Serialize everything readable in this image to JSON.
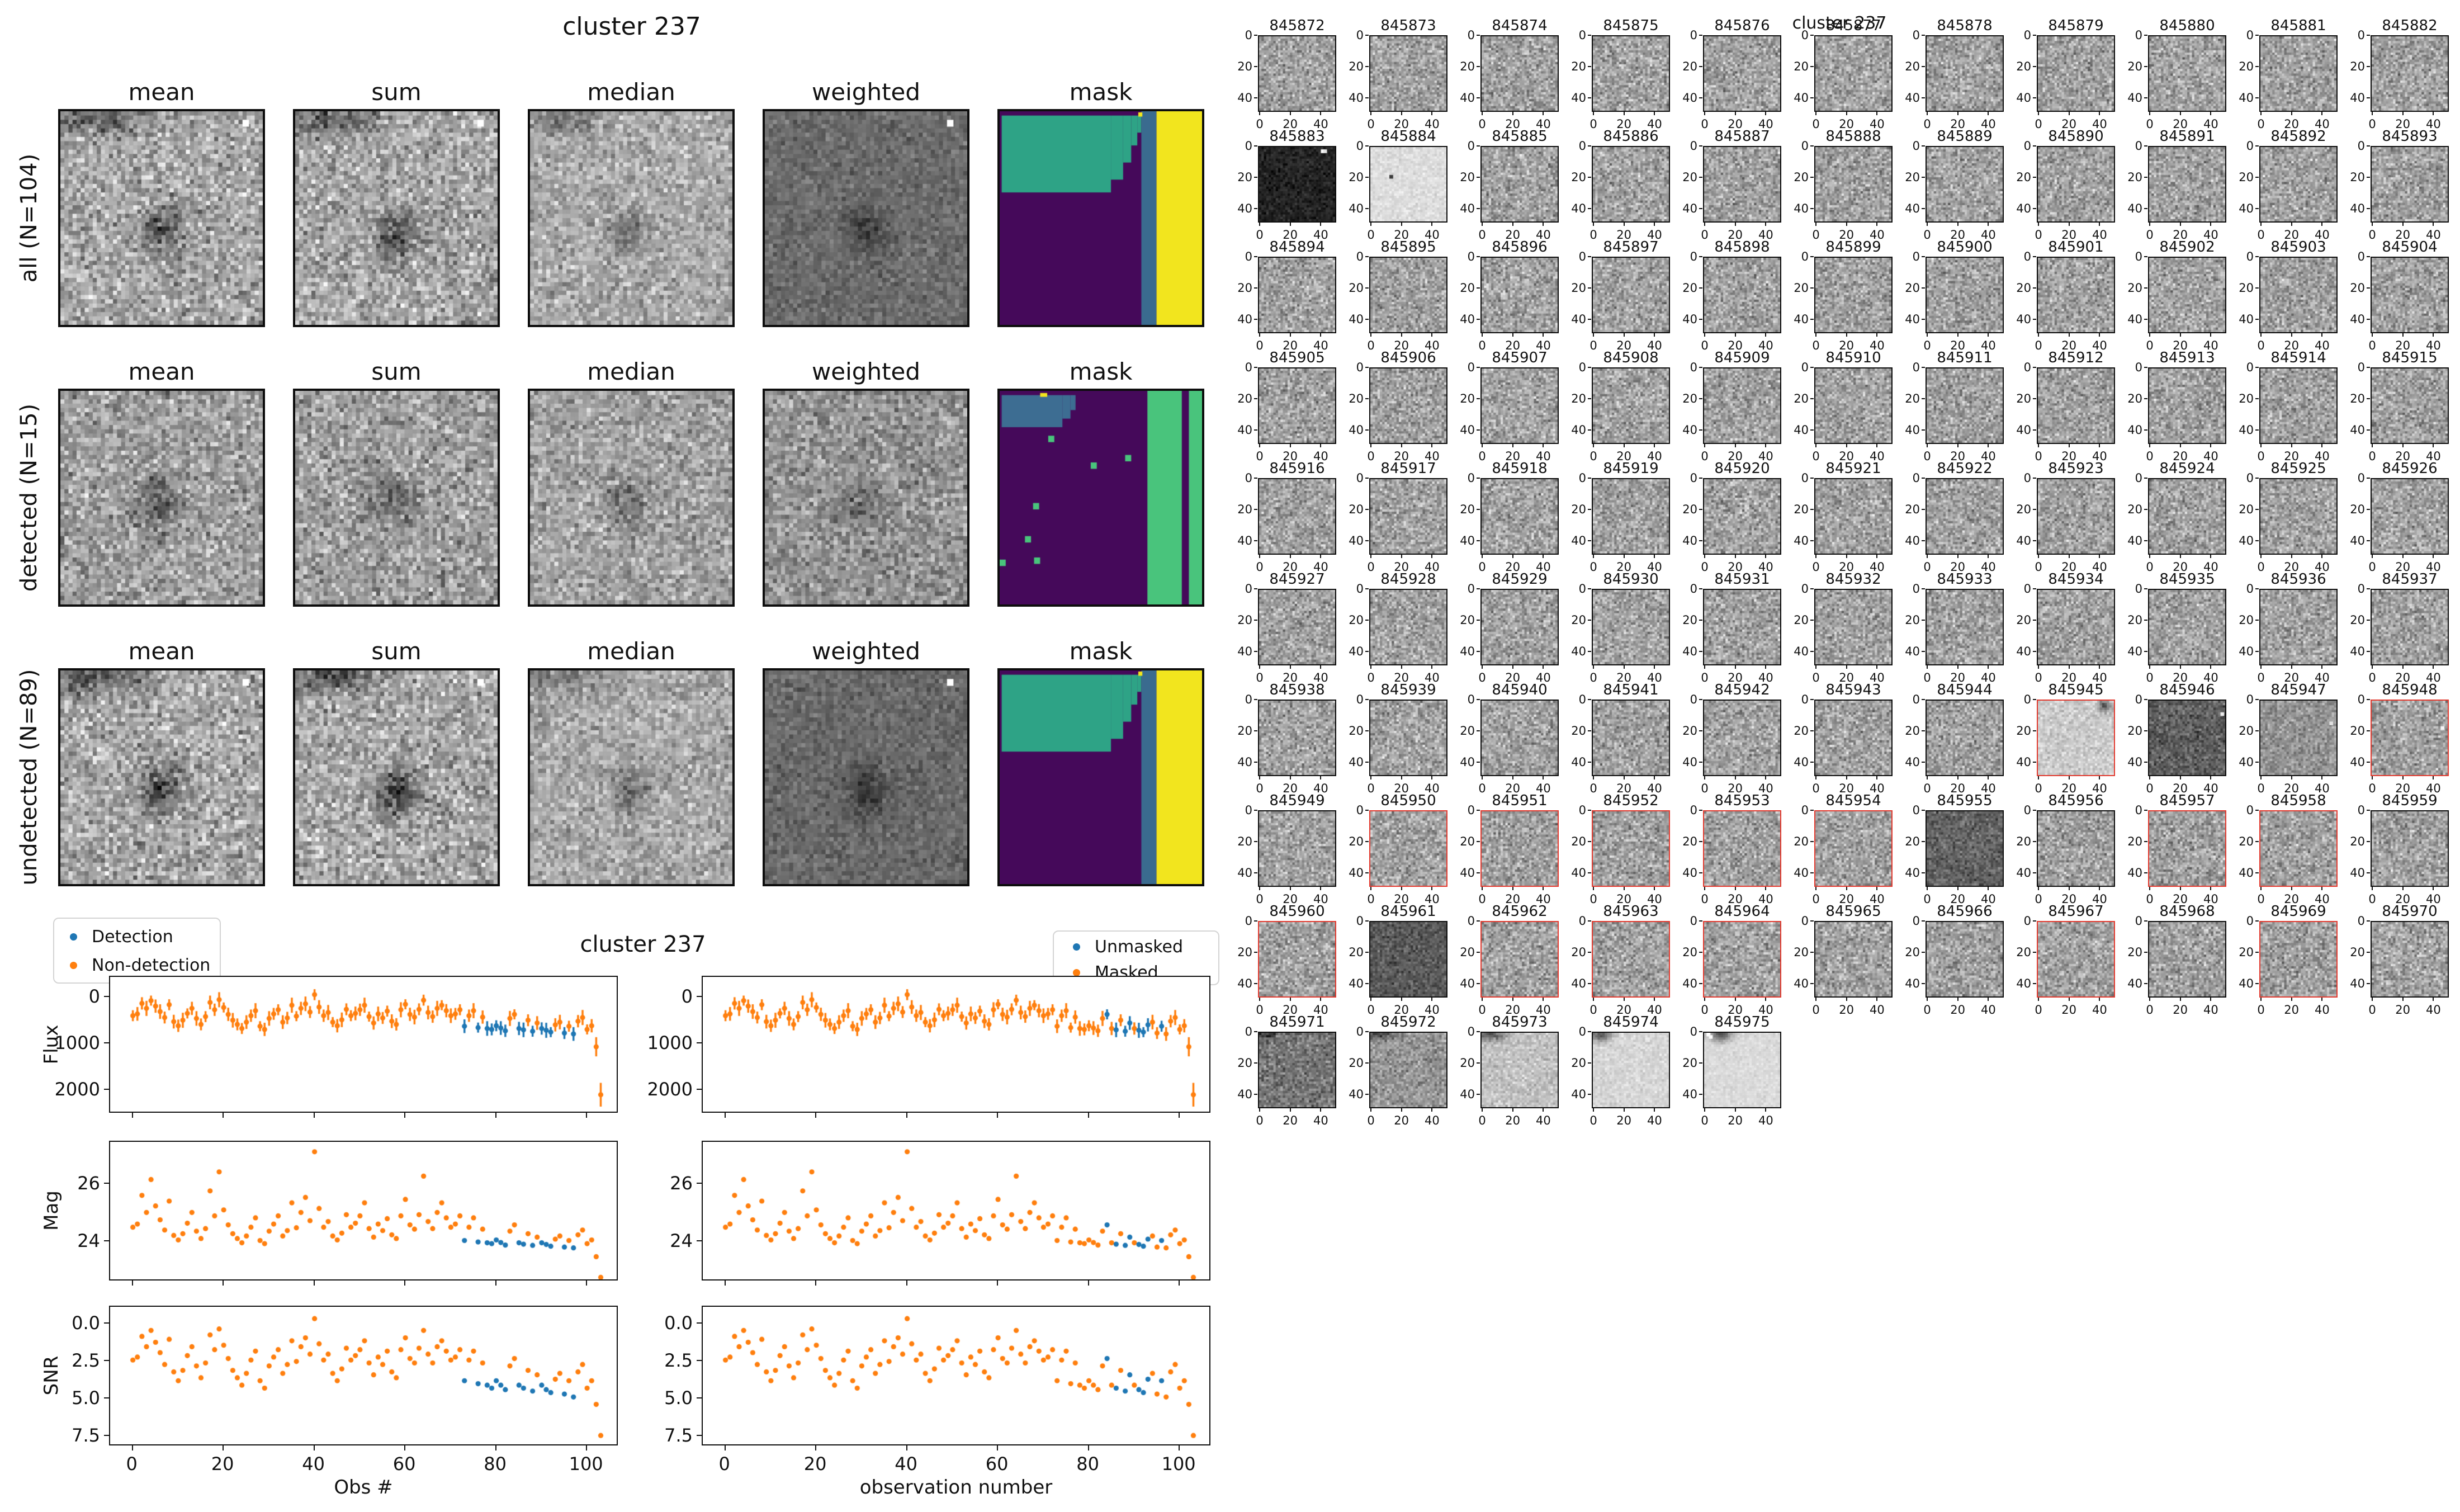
{
  "left_figure": {
    "title": "cluster 237",
    "column_headers": [
      "mean",
      "sum",
      "median",
      "weighted",
      "mask"
    ],
    "rows": [
      {
        "label": "all (N=104)",
        "panels": [
          {
            "kind": "cutout",
            "seed": 11,
            "base": 168,
            "noise": 44,
            "blobs": [
              [
                0.18,
                0.03,
                0.15,
                0.05,
                80
              ],
              [
                0.5,
                0.56,
                0.07,
                0.08,
                85
              ]
            ],
            "dots": [
              [
                0.91,
                0.05,
                255
              ]
            ]
          },
          {
            "kind": "cutout",
            "seed": 12,
            "base": 168,
            "noise": 44,
            "blobs": [
              [
                0.2,
                0.03,
                0.15,
                0.05,
                80
              ],
              [
                0.51,
                0.57,
                0.07,
                0.08,
                88
              ]
            ],
            "dots": [
              [
                0.91,
                0.05,
                255
              ]
            ]
          },
          {
            "kind": "cutout",
            "seed": 13,
            "base": 170,
            "noise": 34,
            "blobs": [
              [
                0.18,
                0.03,
                0.13,
                0.05,
                50
              ],
              [
                0.5,
                0.56,
                0.06,
                0.07,
                60
              ]
            ],
            "dots": []
          },
          {
            "kind": "cutout",
            "seed": 14,
            "base": 108,
            "noise": 20,
            "blobs": [
              [
                0.5,
                0.56,
                0.07,
                0.08,
                45
              ]
            ],
            "dots": [
              [
                0.91,
                0.05,
                255
              ]
            ]
          },
          {
            "kind": "mask",
            "bg": "#45095a",
            "regions": [
              [
                "#2ea386",
                0.01,
                0.02,
                0.54,
                0.36
              ],
              [
                "#2ea386",
                0.55,
                0.02,
                0.06,
                0.3
              ],
              [
                "#2ea386",
                0.61,
                0.02,
                0.04,
                0.22
              ],
              [
                "#2ea386",
                0.65,
                0.02,
                0.03,
                0.14
              ],
              [
                "#2ea386",
                0.68,
                0.02,
                0.02,
                0.08
              ],
              [
                "#3a6b8f",
                0.7,
                0.0,
                0.075,
                1.0
              ],
              [
                "#f2e51e",
                0.775,
                0.0,
                0.225,
                1.0
              ],
              [
                "#f2e51e",
                0.685,
                0.005,
                0.02,
                0.02
              ]
            ],
            "dots": []
          }
        ]
      },
      {
        "label": "detected (N=15)",
        "panels": [
          {
            "kind": "cutout",
            "seed": 21,
            "base": 160,
            "noise": 42,
            "blobs": [
              [
                0.48,
                0.52,
                0.08,
                0.09,
                60
              ]
            ],
            "dots": []
          },
          {
            "kind": "cutout",
            "seed": 22,
            "base": 160,
            "noise": 42,
            "blobs": [
              [
                0.48,
                0.52,
                0.08,
                0.09,
                62
              ]
            ],
            "dots": []
          },
          {
            "kind": "cutout",
            "seed": 23,
            "base": 162,
            "noise": 38,
            "blobs": [
              [
                0.48,
                0.52,
                0.07,
                0.08,
                45
              ]
            ],
            "dots": []
          },
          {
            "kind": "cutout",
            "seed": 24,
            "base": 148,
            "noise": 36,
            "blobs": [
              [
                0.48,
                0.52,
                0.07,
                0.08,
                40
              ]
            ],
            "dots": []
          },
          {
            "kind": "mask",
            "bg": "#45095a",
            "regions": [
              [
                "#3d6d92",
                0.01,
                0.02,
                0.3,
                0.15
              ],
              [
                "#3d6d92",
                0.31,
                0.02,
                0.04,
                0.11
              ],
              [
                "#3d6d92",
                0.35,
                0.02,
                0.025,
                0.07
              ],
              [
                "#f2e51e",
                0.2,
                0.01,
                0.035,
                0.018
              ],
              [
                "#49c47c",
                0.73,
                0.0,
                0.17,
                1.0
              ],
              [
                "#49c47c",
                0.935,
                0.0,
                0.065,
                1.0
              ]
            ],
            "dots": [
              [
                "#49c47c",
                0.24,
                0.21
              ],
              [
                "#49c47c",
                0.62,
                0.3
              ],
              [
                "#49c47c",
                0.45,
                0.335
              ],
              [
                "#49c47c",
                0.165,
                0.525
              ],
              [
                "#49c47c",
                0.125,
                0.68
              ],
              [
                "#49c47c",
                0.17,
                0.78
              ],
              [
                "#49c47c",
                0.0,
                0.79
              ]
            ]
          }
        ]
      },
      {
        "label": "undetected (N=89)",
        "panels": [
          {
            "kind": "cutout",
            "seed": 31,
            "base": 168,
            "noise": 44,
            "blobs": [
              [
                0.18,
                0.03,
                0.15,
                0.05,
                82
              ],
              [
                0.5,
                0.56,
                0.07,
                0.08,
                90
              ]
            ],
            "dots": [
              [
                0.91,
                0.05,
                255
              ]
            ]
          },
          {
            "kind": "cutout",
            "seed": 32,
            "base": 168,
            "noise": 44,
            "blobs": [
              [
                0.2,
                0.03,
                0.15,
                0.05,
                82
              ],
              [
                0.51,
                0.57,
                0.07,
                0.08,
                92
              ]
            ],
            "dots": [
              [
                0.91,
                0.05,
                255
              ]
            ]
          },
          {
            "kind": "cutout",
            "seed": 33,
            "base": 170,
            "noise": 34,
            "blobs": [
              [
                0.18,
                0.03,
                0.13,
                0.05,
                52
              ],
              [
                0.5,
                0.56,
                0.06,
                0.07,
                62
              ]
            ],
            "dots": []
          },
          {
            "kind": "cutout",
            "seed": 34,
            "base": 106,
            "noise": 20,
            "blobs": [
              [
                0.5,
                0.56,
                0.07,
                0.08,
                48
              ]
            ],
            "dots": [
              [
                0.91,
                0.05,
                255
              ]
            ]
          },
          {
            "kind": "mask",
            "bg": "#45095a",
            "regions": [
              [
                "#2ea386",
                0.01,
                0.02,
                0.54,
                0.36
              ],
              [
                "#2ea386",
                0.55,
                0.02,
                0.06,
                0.3
              ],
              [
                "#2ea386",
                0.61,
                0.02,
                0.04,
                0.22
              ],
              [
                "#2ea386",
                0.65,
                0.02,
                0.03,
                0.14
              ],
              [
                "#2ea386",
                0.68,
                0.02,
                0.02,
                0.08
              ],
              [
                "#3a6b8f",
                0.7,
                0.0,
                0.075,
                1.0
              ],
              [
                "#f2e51e",
                0.775,
                0.0,
                0.225,
                1.0
              ],
              [
                "#f2e51e",
                0.685,
                0.005,
                0.02,
                0.02
              ]
            ],
            "dots": []
          }
        ]
      }
    ]
  },
  "chart_data": {
    "type": "scatter",
    "title": "cluster 237",
    "n": 104,
    "x_is_index": true,
    "xlabel_left": "Obs #",
    "xlabel_right": "observation number",
    "ylabels": [
      "Flux",
      "Mag",
      "SNR"
    ],
    "xticks": [
      0,
      20,
      40,
      60,
      80,
      100
    ],
    "yticks": {
      "flux": [
        2000,
        1000,
        0
      ],
      "mag": [
        24,
        26
      ],
      "snr": [
        7.5,
        5.0,
        2.5,
        0.0
      ]
    },
    "xlim": [
      -5,
      107
    ],
    "ylim": {
      "flux": [
        -430,
        2520
      ],
      "mag": [
        27.45,
        22.6
      ],
      "snr": [
        -1.1,
        8.2
      ]
    },
    "legends": {
      "left": [
        {
          "label": "Detection",
          "color": "#1f77b4"
        },
        {
          "label": "Non-detection",
          "color": "#ff7f0e"
        }
      ],
      "right": [
        {
          "label": "Unmasked",
          "color": "#1f77b4"
        },
        {
          "label": "Masked",
          "color": "#ff7f0e"
        }
      ]
    },
    "flux": [
      420,
      380,
      150,
      260,
      90,
      210,
      330,
      460,
      180,
      550,
      640,
      520,
      370,
      260,
      480,
      610,
      440,
      130,
      290,
      70,
      240,
      390,
      520,
      610,
      700,
      560,
      420,
      310,
      650,
      720,
      480,
      380,
      290,
      560,
      470,
      190,
      430,
      260,
      160,
      340,
      -40,
      230,
      420,
      350,
      560,
      640,
      510,
      280,
      420,
      370,
      290,
      190,
      440,
      580,
      380,
      470,
      320,
      540,
      610,
      290,
      170,
      390,
      450,
      280,
      80,
      350,
      440,
      260,
      190,
      310,
      420,
      380,
      290,
      650,
      420,
      310,
      680,
      450,
      700,
      720,
      640,
      690,
      750,
      480,
      390,
      700,
      730,
      520,
      760,
      580,
      700,
      740,
      780,
      620,
      560,
      800,
      650,
      820,
      540,
      460,
      720,
      640,
      1100,
      2150
    ],
    "flux_err": [
      120,
      150,
      135,
      165,
      110,
      145,
      160,
      130,
      120,
      150,
      135,
      165,
      110,
      145,
      160,
      130,
      120,
      150,
      135,
      165,
      110,
      145,
      160,
      130,
      120,
      150,
      135,
      165,
      110,
      145,
      160,
      130,
      120,
      150,
      135,
      165,
      110,
      145,
      160,
      130,
      120,
      150,
      135,
      165,
      110,
      145,
      160,
      130,
      120,
      150,
      135,
      165,
      110,
      145,
      160,
      130,
      120,
      150,
      135,
      165,
      110,
      145,
      160,
      130,
      120,
      150,
      135,
      165,
      110,
      145,
      160,
      130,
      120,
      150,
      135,
      165,
      110,
      145,
      160,
      130,
      120,
      150,
      135,
      165,
      110,
      145,
      160,
      130,
      120,
      150,
      135,
      165,
      110,
      145,
      160,
      130,
      120,
      150,
      135,
      165,
      110,
      145,
      210,
      260
    ],
    "mag": [
      24.44,
      24.55,
      25.56,
      24.96,
      26.12,
      25.19,
      24.7,
      24.34,
      25.36,
      24.15,
      23.99,
      24.21,
      24.58,
      24.96,
      24.3,
      24.04,
      24.39,
      25.72,
      24.84,
      26.39,
      25.05,
      24.52,
      24.21,
      24.04,
      23.89,
      24.13,
      24.44,
      24.77,
      23.97,
      23.86,
      24.3,
      24.55,
      24.84,
      24.13,
      24.32,
      25.3,
      24.42,
      24.96,
      25.49,
      24.67,
      27.1,
      25.1,
      24.44,
      24.64,
      24.13,
      23.99,
      24.23,
      24.88,
      24.44,
      24.58,
      24.84,
      25.3,
      24.39,
      24.09,
      24.55,
      24.32,
      24.74,
      24.17,
      24.04,
      24.84,
      25.42,
      24.52,
      24.37,
      24.88,
      26.24,
      24.64,
      24.39,
      24.96,
      25.3,
      24.77,
      24.44,
      24.55,
      24.84,
      23.97,
      24.44,
      24.77,
      23.92,
      24.37,
      23.89,
      23.86,
      23.99,
      23.9,
      23.81,
      24.3,
      24.52,
      23.89,
      23.84,
      24.21,
      23.8,
      24.09,
      23.89,
      23.83,
      23.77,
      24.02,
      24.13,
      23.74,
      23.97,
      23.71,
      24.17,
      24.34,
      23.86,
      23.99,
      23.4,
      22.67
    ],
    "snr": [
      2.5,
      2.3,
      0.9,
      1.6,
      0.5,
      1.3,
      2.0,
      2.8,
      1.1,
      3.3,
      3.9,
      3.2,
      2.2,
      1.6,
      2.9,
      3.7,
      2.7,
      0.8,
      1.8,
      0.4,
      1.5,
      2.4,
      3.2,
      3.7,
      4.2,
      3.4,
      2.5,
      1.9,
      3.9,
      4.4,
      2.9,
      2.3,
      1.8,
      3.4,
      2.8,
      1.2,
      2.6,
      1.6,
      1.0,
      2.1,
      -0.3,
      1.4,
      2.5,
      2.1,
      3.4,
      3.9,
      3.1,
      1.7,
      2.5,
      2.2,
      1.8,
      1.2,
      2.7,
      3.5,
      2.3,
      2.8,
      1.9,
      3.3,
      3.7,
      1.8,
      1.0,
      2.4,
      2.7,
      1.7,
      0.5,
      2.1,
      2.7,
      1.6,
      1.2,
      1.9,
      2.5,
      2.3,
      1.8,
      3.9,
      2.5,
      1.9,
      4.1,
      2.7,
      4.2,
      4.4,
      3.9,
      4.2,
      4.5,
      2.9,
      2.4,
      4.2,
      4.4,
      3.2,
      4.6,
      3.5,
      4.2,
      4.5,
      4.7,
      3.8,
      3.4,
      4.8,
      3.9,
      5.0,
      3.3,
      2.8,
      4.4,
      3.9,
      5.5,
      7.6
    ],
    "detected_idx": [
      73,
      76,
      78,
      79,
      80,
      81,
      82,
      85,
      86,
      88,
      90,
      91,
      92,
      95,
      97
    ],
    "unmasked_idx": [
      84,
      86,
      88,
      89,
      91,
      92,
      93,
      96
    ]
  },
  "right_grid": {
    "suptitle": "cluster 237",
    "id_start": 845872,
    "count": 104,
    "tick_labels": {
      "x": [
        "0",
        "20",
        "40"
      ],
      "y": [
        "0",
        "20",
        "40"
      ]
    },
    "special": {
      "845883": {
        "base": 35,
        "noise": 18,
        "dots": [
          [
            0.82,
            0.04,
            255
          ],
          [
            0.86,
            0.05,
            230
          ]
        ]
      },
      "845884": {
        "base": 222,
        "noise": 13,
        "dots": [
          [
            0.28,
            0.38,
            60
          ]
        ]
      },
      "845945": {
        "base": 205,
        "noise": 22,
        "blobs": [
          [
            0.88,
            0.07,
            0.06,
            0.05,
            120
          ]
        ]
      },
      "845946": {
        "base": 95,
        "noise": 30,
        "dots": [
          [
            0.94,
            0.18,
            235
          ]
        ]
      },
      "845947": {
        "base": 150,
        "noise": 30,
        "dots": [
          [
            0.92,
            0.3,
            225
          ]
        ]
      },
      "845948": {
        "base": 160,
        "noise": 38,
        "dots": [
          [
            0.93,
            0.35,
            245
          ]
        ]
      },
      "845955": {
        "base": 100,
        "noise": 28
      },
      "845961": {
        "base": 90,
        "noise": 26
      },
      "845971": {
        "base": 120,
        "noise": 34,
        "blobs": [
          [
            0.08,
            0.02,
            0.1,
            0.05,
            70
          ]
        ]
      },
      "845972": {
        "base": 150,
        "noise": 32,
        "blobs": [
          [
            0.15,
            0.02,
            0.12,
            0.05,
            80
          ]
        ]
      },
      "845973": {
        "base": 195,
        "noise": 22,
        "blobs": [
          [
            0.12,
            0.02,
            0.14,
            0.06,
            110
          ]
        ]
      },
      "845974": {
        "base": 215,
        "noise": 14,
        "blobs": [
          [
            0.1,
            0.03,
            0.1,
            0.06,
            130
          ]
        ]
      },
      "845975": {
        "base": 220,
        "noise": 10,
        "blobs": [
          [
            0.22,
            0.02,
            0.1,
            0.07,
            140
          ]
        ],
        "dots": [
          [
            0.06,
            0.03,
            255
          ],
          [
            0.09,
            0.05,
            250
          ]
        ]
      }
    }
  }
}
